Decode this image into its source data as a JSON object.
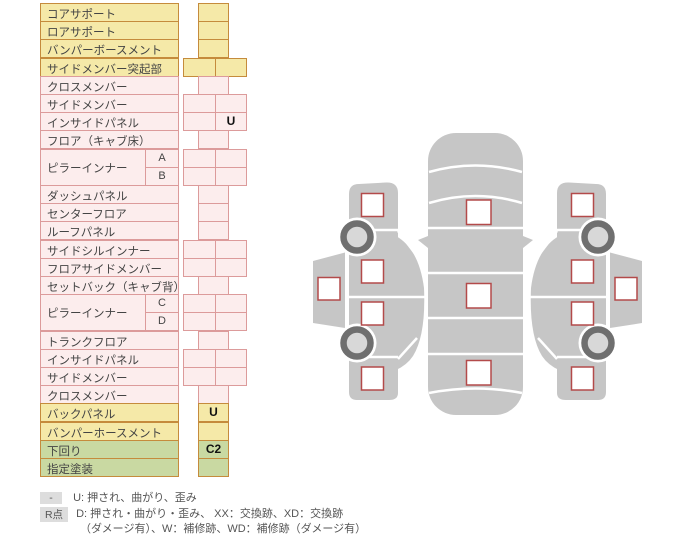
{
  "table": {
    "rows": [
      {
        "label": "コアサポート",
        "color": "yellow",
        "cell": "single",
        "mark": ""
      },
      {
        "label": "ロアサポート",
        "color": "yellow",
        "cell": "single",
        "mark": ""
      },
      {
        "label": "バンパーボースメント",
        "color": "yellow",
        "cell": "single",
        "mark": ""
      },
      {
        "label": "サイドメンバー突起部",
        "color": "yellow",
        "cell": "double",
        "marks": [
          "",
          ""
        ]
      },
      {
        "label": "クロスメンバー",
        "color": "pink",
        "cell": "single",
        "mark": ""
      },
      {
        "label": "サイドメンバー",
        "color": "pink",
        "cell": "double",
        "marks": [
          "",
          ""
        ]
      },
      {
        "label": "インサイドパネル",
        "color": "pink",
        "cell": "double",
        "marks": [
          "",
          "U"
        ]
      },
      {
        "label": "フロア（キャブ床）",
        "color": "pink",
        "cell": "single",
        "mark": ""
      },
      {
        "label": "ピラーインナー",
        "labelSpan": 2,
        "sub": "A",
        "color": "pink",
        "cell": "double",
        "marks": [
          "",
          ""
        ]
      },
      {
        "sub": "B",
        "color": "pink",
        "cell": "double",
        "marks": [
          "",
          ""
        ]
      },
      {
        "label": "ダッシュパネル",
        "color": "pink",
        "cell": "single",
        "mark": ""
      },
      {
        "label": "センターフロア",
        "color": "pink",
        "cell": "single",
        "mark": ""
      },
      {
        "label": "ルーフパネル",
        "color": "pink",
        "cell": "single",
        "mark": ""
      },
      {
        "label": "サイドシルインナー",
        "color": "pink",
        "cell": "double",
        "marks": [
          "",
          ""
        ]
      },
      {
        "label": "フロアサイドメンバー",
        "color": "pink",
        "cell": "double",
        "marks": [
          "",
          ""
        ]
      },
      {
        "label": "セットバック（キャブ背）",
        "color": "pink",
        "cell": "single",
        "mark": ""
      },
      {
        "label": "ピラーインナー",
        "labelSpan": 2,
        "sub": "C",
        "color": "pink",
        "cell": "double",
        "marks": [
          "",
          ""
        ]
      },
      {
        "sub": "D",
        "color": "pink",
        "cell": "double",
        "marks": [
          "",
          ""
        ]
      },
      {
        "label": "トランクフロア",
        "color": "pink",
        "cell": "single",
        "mark": ""
      },
      {
        "label": "インサイドパネル",
        "color": "pink",
        "cell": "double",
        "marks": [
          "",
          ""
        ]
      },
      {
        "label": "サイドメンバー",
        "color": "pink",
        "cell": "double",
        "marks": [
          "",
          ""
        ]
      },
      {
        "label": "クロスメンバー",
        "color": "pink",
        "cell": "single",
        "mark": ""
      },
      {
        "label": "バックパネル",
        "color": "yellow",
        "cell": "single",
        "mark": "U"
      },
      {
        "label": "バンパーホースメント",
        "color": "yellow",
        "cell": "single",
        "mark": ""
      },
      {
        "label": "下回り",
        "color": "green",
        "cell": "single",
        "mark": "C2"
      },
      {
        "label": "指定塗装",
        "color": "green",
        "cell": "single",
        "mark": ""
      }
    ]
  },
  "legend": {
    "line1_key": "-",
    "line1_text": "U: 押され、曲がり、歪み",
    "line2_key": "R点",
    "line2_text": "D: 押され・曲がり・歪み、 XX：交換跡、XD：交換跡",
    "line3_text": "（ダメージ有）、W：補修跡、WD：補修跡（ダメージ有）"
  },
  "diagram": {
    "checkpoint_squares": {
      "top_view": 3,
      "left_side_view": 5,
      "right_side_view": 5
    },
    "wheels_per_side": 2
  },
  "colors": {
    "yellow_fill": "#F5E9A8",
    "pink_fill": "#FCEDED",
    "green_fill": "#C9D9A2",
    "yellow_green_border": "#C58B3C",
    "pink_border": "#DC9B9B",
    "mark_text": "#111111",
    "car_body_gray": "#C6C6C6",
    "wheel_ring": "#6F6F6F",
    "wheel_center": "#D8D8D8",
    "checkpoint_border": "#B34A4A",
    "legend_key_bg": "#DDDDDD"
  }
}
